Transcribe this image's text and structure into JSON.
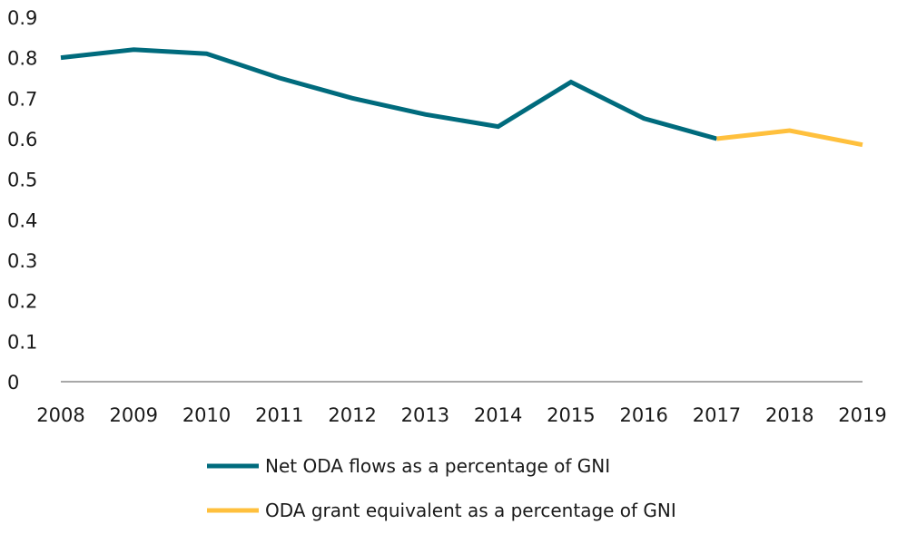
{
  "chart_data": {
    "type": "line",
    "title": "",
    "xlabel": "",
    "ylabel": "",
    "x": [
      "2008",
      "2009",
      "2010",
      "2011",
      "2012",
      "2013",
      "2014",
      "2015",
      "2016",
      "2017",
      "2018",
      "2019"
    ],
    "ylim": [
      0,
      0.9
    ],
    "yticks": [
      "0",
      "0.1",
      "0.2",
      "0.3",
      "0.4",
      "0.5",
      "0.6",
      "0.7",
      "0.8",
      "0.9"
    ],
    "grid": false,
    "legend_position": "bottom",
    "series": [
      {
        "name": "Net ODA flows as a percentage of GNI",
        "color": "#006B7D",
        "x": [
          "2008",
          "2009",
          "2010",
          "2011",
          "2012",
          "2013",
          "2014",
          "2015",
          "2016",
          "2017"
        ],
        "values": [
          0.8,
          0.82,
          0.81,
          0.75,
          0.7,
          0.66,
          0.63,
          0.74,
          0.65,
          0.6
        ]
      },
      {
        "name": "ODA grant equivalent as a percentage of GNI",
        "color": "#FFC03D",
        "x": [
          "2017",
          "2018",
          "2019"
        ],
        "values": [
          0.6,
          0.62,
          0.585
        ]
      }
    ]
  }
}
